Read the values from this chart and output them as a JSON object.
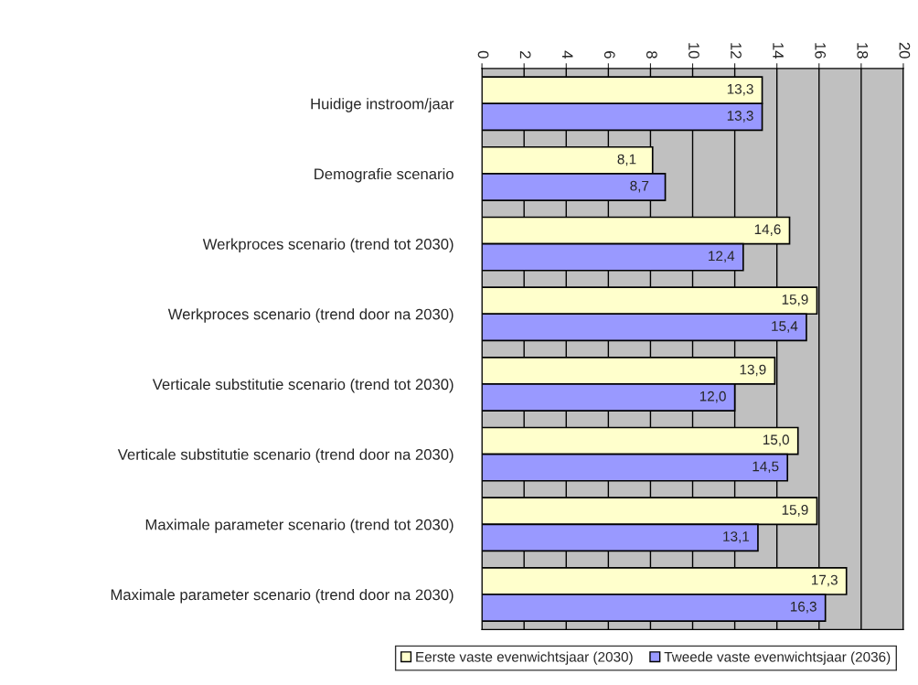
{
  "chart_data": {
    "type": "bar",
    "orientation": "horizontal",
    "categories": [
      "Huidige instroom/jaar",
      "Demografie scenario",
      "Werkproces scenario (trend tot 2030)",
      "Werkproces scenario (trend door na 2030)",
      "Verticale substitutie scenario (trend tot 2030)",
      "Verticale substitutie scenario (trend door na 2030)",
      "Maximale parameter scenario (trend tot 2030)",
      "Maximale parameter scenario (trend door na 2030)"
    ],
    "series": [
      {
        "name": "Eerste vaste evenwichtsjaar (2030)",
        "color": "#ffffcc",
        "values": [
          13.3,
          8.1,
          14.6,
          15.9,
          13.9,
          15.0,
          15.9,
          17.3
        ],
        "value_labels": [
          "13,3",
          "8,1",
          "14,6",
          "15,9",
          "13,9",
          "15,0",
          "15,9",
          "17,3"
        ]
      },
      {
        "name": "Tweede vaste evenwichtsjaar (2036)",
        "color": "#9999ff",
        "values": [
          13.3,
          8.7,
          12.4,
          15.4,
          12.0,
          14.5,
          13.1,
          16.3
        ],
        "value_labels": [
          "13,3",
          "8,7",
          "12,4",
          "15,4",
          "12,0",
          "14,5",
          "13,1",
          "16,3"
        ]
      }
    ],
    "xlim": [
      0,
      20
    ],
    "xticks": [
      0,
      2,
      4,
      6,
      8,
      10,
      12,
      14,
      16,
      18,
      20
    ],
    "grid": "x",
    "legend": "bottom"
  }
}
